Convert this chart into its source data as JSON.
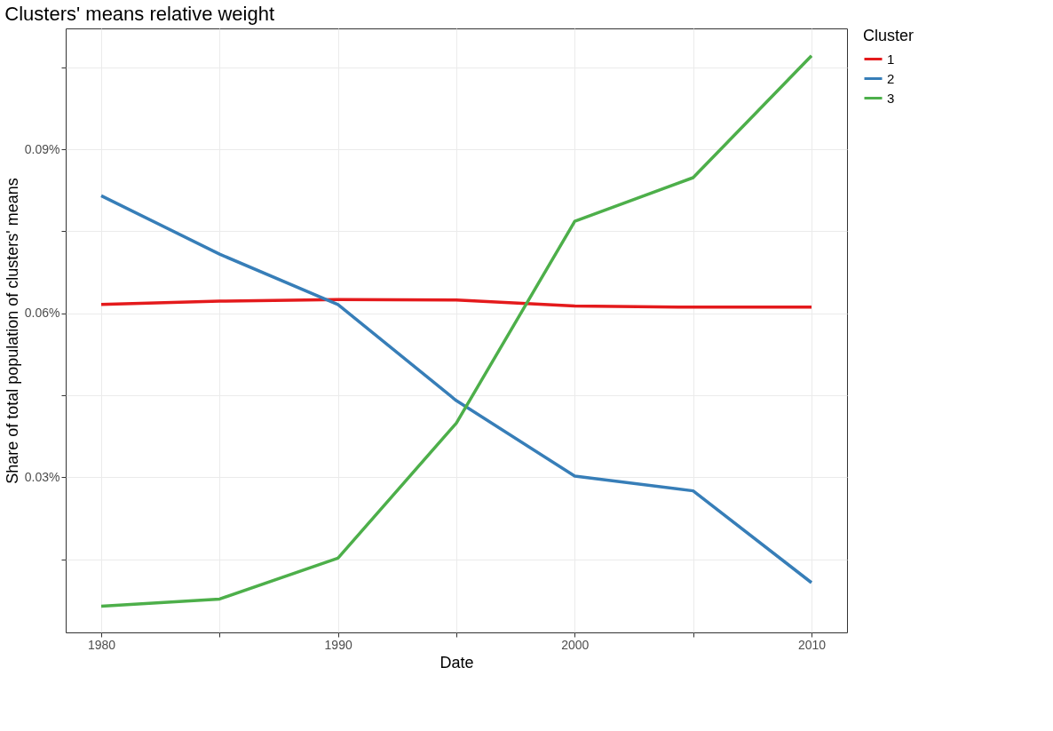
{
  "chart_data": {
    "type": "line",
    "title": "Clusters' means relative weight",
    "xlabel": "Date",
    "ylabel": "Share of total population of clusters' means",
    "legend_title": "Cluster",
    "x": [
      1980,
      1985,
      1990,
      1995,
      2000,
      2005,
      2010
    ],
    "series": [
      {
        "name": "1",
        "color": "#e41a1c",
        "values": [
          0.0616,
          0.0622,
          0.0625,
          0.0624,
          0.0613,
          0.0611,
          0.0611
        ]
      },
      {
        "name": "2",
        "color": "#377eb8",
        "values": [
          0.0815,
          0.0708,
          0.0616,
          0.044,
          0.0302,
          0.0275,
          0.0107
        ]
      },
      {
        "name": "3",
        "color": "#4daf4a",
        "values": [
          0.0064,
          0.0077,
          0.0152,
          0.0399,
          0.0768,
          0.0848,
          0.1071
        ]
      }
    ],
    "xlim": [
      1978.5,
      2011.5
    ],
    "xticks": [
      1980,
      {
        "value": 1985,
        "label": null
      },
      1990,
      {
        "value": 1995,
        "label": null
      },
      2000,
      {
        "value": 2005,
        "label": null
      },
      2010
    ],
    "ylim": [
      0.0016,
      0.1121
    ],
    "yticks": [
      {
        "value": 0.015,
        "label": null
      },
      {
        "value": 0.03,
        "label": "0.03%"
      },
      {
        "value": 0.045,
        "label": null
      },
      {
        "value": 0.06,
        "label": "0.06%"
      },
      {
        "value": 0.075,
        "label": null
      },
      {
        "value": 0.09,
        "label": "0.09%"
      },
      {
        "value": 0.105,
        "label": null
      }
    ],
    "grid": true,
    "legend": "right",
    "marker": "none",
    "line_style": "solid"
  }
}
